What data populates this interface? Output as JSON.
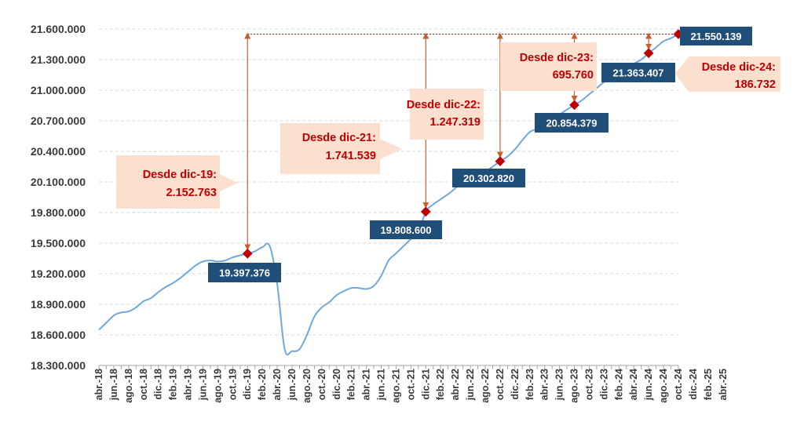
{
  "chart_data": {
    "type": "line",
    "title": "",
    "xlabel": "",
    "ylabel": "",
    "ylim": [
      18300000,
      21600000
    ],
    "y_ticks": [
      "18.300.000",
      "18.600.000",
      "18.900.000",
      "19.200.000",
      "19.500.000",
      "19.800.000",
      "20.100.000",
      "20.400.000",
      "20.700.000",
      "21.000.000",
      "21.300.000",
      "21.600.000"
    ],
    "x_tick_labels": [
      "abr.-18",
      "jun.-18",
      "ago.-18",
      "oct.-18",
      "dic.-18",
      "feb.-19",
      "abr.-19",
      "jun.-19",
      "ago.-19",
      "oct.-19",
      "dic.-19",
      "feb.-20",
      "abr.-20",
      "jun.-20",
      "ago.-20",
      "oct.-20",
      "dic.-20",
      "feb.-21",
      "abr.-21",
      "jun.-21",
      "ago.-21",
      "oct.-21",
      "dic.-21",
      "feb.-22",
      "abr.-22",
      "jun.-22",
      "ago.-22",
      "oct.-22",
      "dic.-22",
      "feb.-23",
      "abr.-23",
      "jun.-23",
      "ago.-23",
      "oct.-23",
      "dic.-23",
      "feb.-24",
      "abr.-24",
      "jun.-24",
      "ago.-24",
      "oct.-24",
      "dic.-24",
      "feb.-25",
      "abr.-25"
    ],
    "grid": "horizontal-dashed",
    "line_color": "#6fa8dc",
    "series": [
      {
        "values": [
          [
            0,
            18650000
          ],
          [
            1,
            18720000
          ],
          [
            2,
            18790000
          ],
          [
            3,
            18820000
          ],
          [
            4,
            18830000
          ],
          [
            5,
            18870000
          ],
          [
            6,
            18930000
          ],
          [
            7,
            18960000
          ],
          [
            8,
            19020000
          ],
          [
            9,
            19070000
          ],
          [
            10,
            19110000
          ],
          [
            11,
            19160000
          ],
          [
            12,
            19220000
          ],
          [
            13,
            19280000
          ],
          [
            14,
            19320000
          ],
          [
            15,
            19330000
          ],
          [
            16,
            19320000
          ],
          [
            17,
            19330000
          ],
          [
            18,
            19360000
          ],
          [
            19,
            19380000
          ],
          [
            20,
            19397376
          ],
          [
            21,
            19420000
          ],
          [
            22,
            19460000
          ],
          [
            23,
            19470000
          ],
          [
            24,
            19100000
          ],
          [
            25,
            18460000
          ],
          [
            26,
            18440000
          ],
          [
            27,
            18460000
          ],
          [
            28,
            18600000
          ],
          [
            29,
            18780000
          ],
          [
            30,
            18870000
          ],
          [
            31,
            18920000
          ],
          [
            32,
            18990000
          ],
          [
            33,
            19030000
          ],
          [
            34,
            19060000
          ],
          [
            35,
            19060000
          ],
          [
            36,
            19050000
          ],
          [
            37,
            19080000
          ],
          [
            38,
            19180000
          ],
          [
            39,
            19330000
          ],
          [
            40,
            19400000
          ],
          [
            41,
            19470000
          ],
          [
            42,
            19540000
          ],
          [
            43,
            19600000
          ],
          [
            44,
            19808600
          ],
          [
            45,
            19880000
          ],
          [
            46,
            19930000
          ],
          [
            47,
            19980000
          ],
          [
            48,
            20040000
          ],
          [
            49,
            20120000
          ],
          [
            50,
            20150000
          ],
          [
            51,
            20160000
          ],
          [
            52,
            20200000
          ],
          [
            53,
            20250000
          ],
          [
            54,
            20302820
          ],
          [
            55,
            20350000
          ],
          [
            56,
            20420000
          ],
          [
            57,
            20510000
          ],
          [
            58,
            20590000
          ],
          [
            59,
            20620000
          ],
          [
            60,
            20650000
          ],
          [
            61,
            20700000
          ],
          [
            62,
            20760000
          ],
          [
            63,
            20810000
          ],
          [
            64,
            20854379
          ],
          [
            65,
            20900000
          ],
          [
            66,
            20960000
          ],
          [
            67,
            21020000
          ],
          [
            68,
            21080000
          ],
          [
            69,
            21130000
          ],
          [
            70,
            21180000
          ],
          [
            71,
            21220000
          ],
          [
            72,
            21260000
          ],
          [
            73,
            21300000
          ],
          [
            74,
            21363407
          ],
          [
            75,
            21420000
          ],
          [
            76,
            21480000
          ],
          [
            77,
            21510000
          ],
          [
            78,
            21550139
          ]
        ]
      }
    ],
    "markers": [
      {
        "x": 20,
        "y": 19397376,
        "label": "19.397.376",
        "annotation": [
          "Desde dic-19:",
          "2.152.763"
        ]
      },
      {
        "x": 44,
        "y": 19808600,
        "label": "19.808.600",
        "annotation": [
          "Desde dic-21:",
          "1.741.539"
        ]
      },
      {
        "x": 54,
        "y": 20302820,
        "label": "20.302.820",
        "annotation": [
          "Desde dic-22:",
          "1.247.319"
        ]
      },
      {
        "x": 64,
        "y": 20854379,
        "label": "20.854.379",
        "annotation": [
          "Desde dic-23:",
          "695.760"
        ]
      },
      {
        "x": 74,
        "y": 21363407,
        "label": "21.363.407",
        "annotation": [
          "Desde dic-24:",
          "186.732"
        ]
      },
      {
        "x": 78,
        "y": 21550139,
        "label": "21.550.139"
      }
    ],
    "colors": {
      "line": "#6fa8dc",
      "marker": "#c00000",
      "label_box": "#1f4e79",
      "annotation_box": "#fbe0d0",
      "annotation_text": "#c00000",
      "arrow": "#c65f30",
      "grid": "#d9d9d9",
      "axis": "#a6a6a6"
    }
  }
}
